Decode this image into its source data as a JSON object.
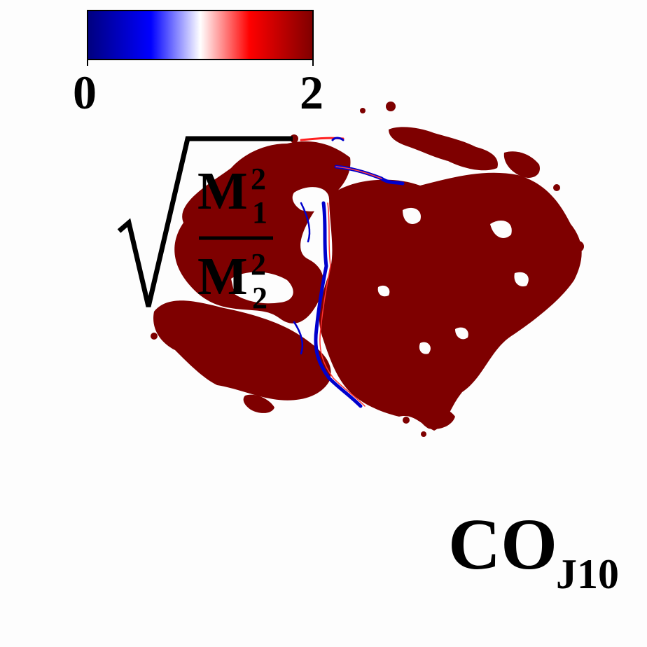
{
  "colorbar": {
    "min_label": "0",
    "max_label": "2",
    "colors": [
      "#000080",
      "#0000ff",
      "#ffffff",
      "#ff0000",
      "#800000"
    ]
  },
  "formula": {
    "numerator_base": "M",
    "numerator_sup": "2",
    "numerator_sub": "1",
    "denominator_base": "M",
    "denominator_sup": "2",
    "denominator_sub": "2"
  },
  "corner_label": {
    "main": "CO",
    "sub": "J10"
  },
  "map_colors": {
    "fill": "#7e0000",
    "edge": "#ff2020",
    "low": "#0000cc"
  }
}
